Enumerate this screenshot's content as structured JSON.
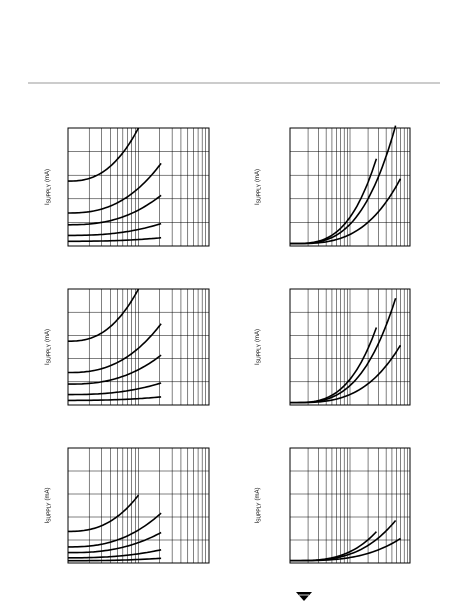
{
  "panels": [
    {
      "y_label": {
        "symbol": "I",
        "subscript": "SUPPLY",
        "unit": "(mA)"
      }
    },
    {
      "y_label": {
        "symbol": "I",
        "subscript": "SUPPLY",
        "unit": "(mA)"
      }
    },
    {
      "y_label": {
        "symbol": "I",
        "subscript": "SUPPLY",
        "unit": "(mA)"
      }
    },
    {
      "y_label": {
        "symbol": "I",
        "subscript": "SUPPLY",
        "unit": "(mA)"
      }
    },
    {
      "y_label": {
        "symbol": "I",
        "subscript": "SUPPLY",
        "unit": "(mA)"
      }
    },
    {
      "y_label": {
        "symbol": "I",
        "subscript": "SUPPLY",
        "unit": "(mA)"
      }
    }
  ]
}
